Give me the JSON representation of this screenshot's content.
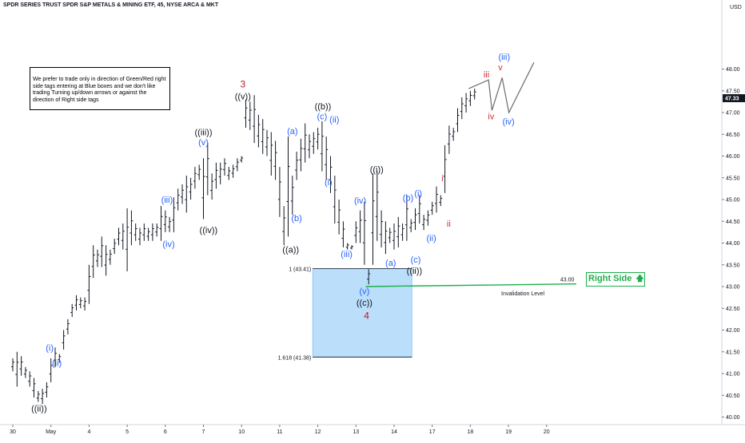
{
  "chart_data": {
    "type": "bar",
    "title": "SPDR SERIES TRUST SPDR S&P METALS & MINING ETF, 45, NYSE ARCA & MKT",
    "currency": "USD",
    "ylim": [
      39.9,
      48.35
    ],
    "y_ticks": [
      "40.00",
      "40.50",
      "41.00",
      "41.50",
      "42.00",
      "42.50",
      "43.00",
      "43.50",
      "44.00",
      "44.50",
      "45.00",
      "45.50",
      "46.00",
      "46.50",
      "47.00",
      "47.50",
      "48.00"
    ],
    "x_ticks": [
      {
        "label": "30",
        "i": 1
      },
      {
        "label": "May",
        "i": 10
      },
      {
        "label": "4",
        "i": 19
      },
      {
        "label": "5",
        "i": 28
      },
      {
        "label": "6",
        "i": 37
      },
      {
        "label": "7",
        "i": 46
      },
      {
        "label": "10",
        "i": 55
      },
      {
        "label": "11",
        "i": 64
      },
      {
        "label": "12",
        "i": 73
      },
      {
        "label": "13",
        "i": 82
      },
      {
        "label": "14",
        "i": 91
      },
      {
        "label": "17",
        "i": 100
      },
      {
        "label": "18",
        "i": 109
      },
      {
        "label": "19",
        "i": 118
      },
      {
        "label": "20",
        "i": 127
      }
    ],
    "last_price": "47.33",
    "last_price_value": 47.33,
    "bars_high": [
      41.35,
      41.5,
      41.4,
      41.15,
      41.05,
      40.9,
      40.6,
      40.65,
      40.8,
      41.35,
      41.6,
      41.45,
      42.0,
      42.25,
      42.6,
      42.8,
      42.75,
      42.75,
      43.5,
      43.95,
      43.85,
      44.15,
      43.95,
      43.85,
      44.1,
      44.35,
      44.45,
      44.8,
      44.75,
      44.45,
      44.35,
      44.45,
      44.35,
      44.45,
      44.45,
      44.85,
      44.75,
      44.6,
      45.05,
      45.25,
      45.35,
      45.55,
      45.5,
      45.75,
      45.8,
      45.95,
      46.3,
      45.6,
      45.85,
      45.85,
      45.95,
      45.75,
      45.8,
      45.95,
      46.0,
      47.3,
      47.25,
      47.4,
      46.95,
      46.85,
      46.6,
      46.55,
      46.35,
      45.75,
      44.85,
      46.45,
      45.55,
      46.1,
      46.4,
      46.75,
      46.5,
      46.55,
      46.65,
      46.8,
      46.45,
      46.0,
      45.55,
      45.0,
      44.5,
      44.0,
      43.95,
      44.5,
      44.75,
      44.95,
      43.4,
      45.6,
      45.65,
      44.75,
      44.5,
      44.35,
      44.45,
      44.6,
      44.45,
      45.1,
      44.55,
      44.8,
      45.1,
      44.65,
      44.75,
      44.95,
      45.3,
      45.1,
      46.25,
      46.7,
      46.65,
      47.1,
      47.35,
      47.45,
      47.5,
      47.55
    ],
    "bars_low": [
      41.05,
      40.7,
      40.95,
      40.9,
      40.7,
      40.45,
      40.35,
      40.3,
      40.45,
      40.8,
      41.15,
      41.25,
      41.55,
      41.9,
      42.3,
      42.45,
      42.5,
      42.45,
      42.6,
      43.2,
      43.45,
      43.45,
      43.25,
      43.5,
      43.75,
      43.95,
      43.85,
      43.35,
      43.95,
      44.05,
      43.95,
      44.05,
      44.05,
      44.05,
      44.15,
      44.05,
      44.25,
      44.25,
      44.25,
      44.75,
      44.9,
      44.7,
      45.0,
      45.25,
      45.45,
      44.55,
      45.1,
      45.0,
      45.25,
      45.35,
      45.55,
      45.45,
      45.5,
      45.65,
      45.85,
      46.65,
      46.6,
      46.3,
      46.2,
      46.05,
      46.0,
      45.55,
      45.45,
      44.6,
      43.95,
      44.15,
      44.65,
      45.45,
      45.65,
      45.85,
      45.95,
      46.05,
      46.15,
      45.65,
      45.45,
      45.15,
      44.45,
      44.2,
      43.9,
      43.85,
      43.85,
      44.0,
      44.0,
      43.5,
      43.05,
      43.5,
      44.05,
      43.9,
      43.75,
      44.0,
      43.85,
      43.9,
      44.05,
      44.05,
      44.25,
      44.3,
      44.45,
      44.3,
      44.4,
      44.65,
      44.7,
      44.85,
      45.15,
      46.05,
      46.35,
      46.55,
      46.85,
      47.0,
      47.15,
      47.3
    ]
  },
  "labels": [
    {
      "text": "3",
      "color": "#b71c1c",
      "x": 55.3,
      "y": 47.65
    },
    {
      "text": "((v))",
      "color": "#131722",
      "x": 55.3,
      "y": 47.38
    },
    {
      "text": "((iii))",
      "color": "#131722",
      "x": 46.0,
      "y": 46.55
    },
    {
      "text": "(v)",
      "color": "#2962ff",
      "x": 46.0,
      "y": 46.32
    },
    {
      "text": "(iii)",
      "color": "#2962ff",
      "x": 37.4,
      "y": 45.0
    },
    {
      "text": "(iv)",
      "color": "#2962ff",
      "x": 37.8,
      "y": 43.98
    },
    {
      "text": "((iv))",
      "color": "#131722",
      "x": 47.2,
      "y": 44.3
    },
    {
      "text": "(i)",
      "color": "#2962ff",
      "x": 9.7,
      "y": 41.6
    },
    {
      "text": "(ii)",
      "color": "#2962ff",
      "x": 11.4,
      "y": 41.25
    },
    {
      "text": "((ii))",
      "color": "#131722",
      "x": 7.2,
      "y": 40.2
    },
    {
      "text": "((a))",
      "color": "#131722",
      "x": 66.6,
      "y": 43.85
    },
    {
      "text": "(b)",
      "color": "#2962ff",
      "x": 68.0,
      "y": 44.58
    },
    {
      "text": "(a)",
      "color": "#2962ff",
      "x": 67.0,
      "y": 46.58
    },
    {
      "text": "((b))",
      "color": "#131722",
      "x": 74.2,
      "y": 47.15
    },
    {
      "text": "(c)",
      "color": "#2962ff",
      "x": 74.0,
      "y": 46.92
    },
    {
      "text": "(ii)",
      "color": "#2962ff",
      "x": 76.9,
      "y": 46.84
    },
    {
      "text": "(i)",
      "color": "#2962ff",
      "x": 75.5,
      "y": 45.4
    },
    {
      "text": "(iv)",
      "color": "#2962ff",
      "x": 83.0,
      "y": 44.98
    },
    {
      "text": "(iii)",
      "color": "#2962ff",
      "x": 79.8,
      "y": 43.75
    },
    {
      "text": "((i))",
      "color": "#131722",
      "x": 86.9,
      "y": 45.7
    },
    {
      "text": "(a)",
      "color": "#2962ff",
      "x": 90.2,
      "y": 43.55
    },
    {
      "text": "(b)",
      "color": "#2962ff",
      "x": 94.3,
      "y": 45.05
    },
    {
      "text": "(i)",
      "color": "#2962ff",
      "x": 96.7,
      "y": 45.15
    },
    {
      "text": "(ii)",
      "color": "#2962ff",
      "x": 99.8,
      "y": 44.12
    },
    {
      "text": "(c)",
      "color": "#2962ff",
      "x": 96.1,
      "y": 43.62
    },
    {
      "text": "((ii))",
      "color": "#131722",
      "x": 95.8,
      "y": 43.37
    },
    {
      "text": "(v)",
      "color": "#2962ff",
      "x": 84.0,
      "y": 42.9
    },
    {
      "text": "((c))",
      "color": "#131722",
      "x": 84.0,
      "y": 42.63
    },
    {
      "text": "4",
      "color": "#b71c1c",
      "x": 84.5,
      "y": 42.33
    },
    {
      "text": "i",
      "color": "#d32f2f",
      "x": 102.4,
      "y": 45.5
    },
    {
      "text": "ii",
      "color": "#d32f2f",
      "x": 103.9,
      "y": 44.45
    },
    {
      "text": "iii",
      "color": "#d32f2f",
      "x": 112.8,
      "y": 47.88
    },
    {
      "text": "iv",
      "color": "#d32f2f",
      "x": 113.9,
      "y": 46.92
    },
    {
      "text": "v",
      "color": "#d32f2f",
      "x": 116.1,
      "y": 48.05
    },
    {
      "text": "(iii)",
      "color": "#2962ff",
      "x": 117.0,
      "y": 48.28
    },
    {
      "text": "(iv)",
      "color": "#2962ff",
      "x": 118.0,
      "y": 46.8
    }
  ],
  "projection": [
    [
      108.6,
      47.55
    ],
    [
      113.3,
      47.75
    ],
    [
      114.1,
      47.05
    ],
    [
      116.5,
      47.8
    ],
    [
      118.1,
      47.0
    ],
    [
      124.0,
      48.15
    ]
  ],
  "box": {
    "i1": 71.8,
    "i2": 95.2,
    "top": 43.41,
    "bottom": 41.38,
    "top_label": "1 (43.41)",
    "bottom_label": "1.618 (41.38)"
  },
  "invalidation": {
    "i1": 84.3,
    "i2": 134.0,
    "y1": 43.0,
    "y2": 43.06,
    "label": "Invalidation Level",
    "value_label": "43.00"
  },
  "note_text": "We prefer to trade only in direction of Green/Red right side tags entering at Blue boxes and we don't like trading Turning up/down arrows or against the direction of Right side tags",
  "right_side_text": "Right Side",
  "right_side_arrow": "🡅"
}
